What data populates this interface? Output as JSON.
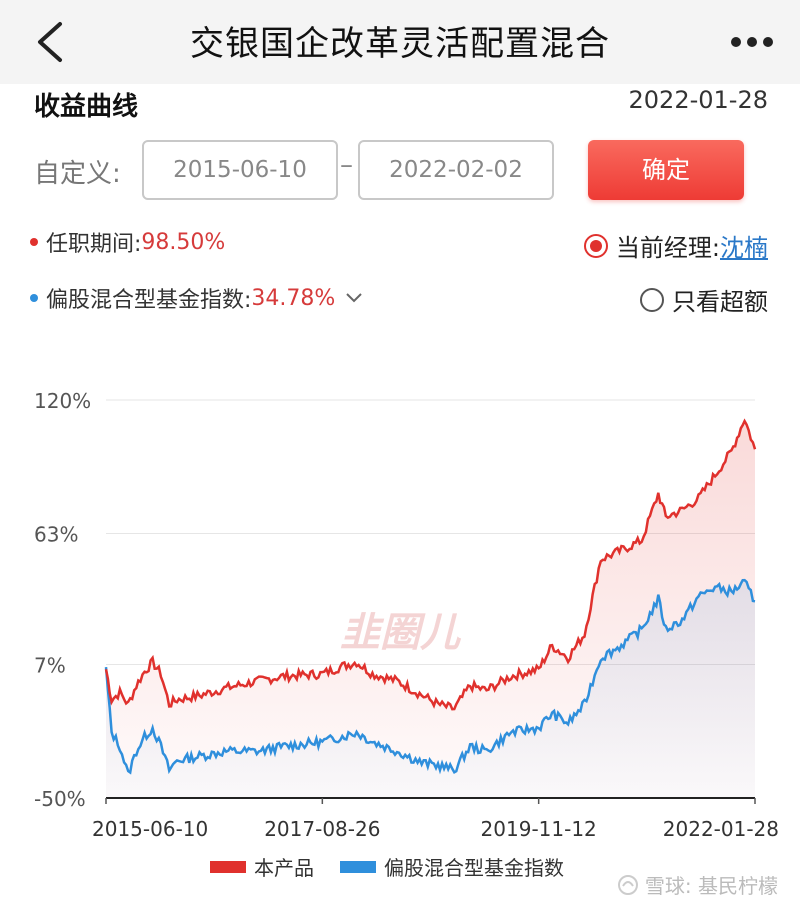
{
  "nav": {
    "title": "交银国企改革灵活配置混合",
    "back_icon": "chevron-left-icon",
    "more_icon": "more-horizontal-icon"
  },
  "section": {
    "title": "收益曲线",
    "date": "2022-01-28"
  },
  "range": {
    "label": "自定义:",
    "start": "2015-06-10",
    "separator": "–",
    "end": "2022-02-02",
    "confirm_label": "确定"
  },
  "legend": {
    "product": {
      "label": "任职期间:",
      "value": "98.50%",
      "color": "#e0312d"
    },
    "index": {
      "label": "偏股混合型基金指数:",
      "value": "34.78%",
      "color": "#2f8fdc"
    }
  },
  "options": {
    "current_manager_label": "当前经理:",
    "current_manager_name": "沈楠",
    "excess_label": "只看超额"
  },
  "watermark": "韭圈儿",
  "footer": "雪球: 基民柠檬",
  "colors": {
    "product": "#e0312d",
    "index": "#2f8fdc",
    "accent": "#ee3b35"
  },
  "chart_data": {
    "type": "line",
    "x_ticks": [
      "2015-06-10",
      "2017-08-26",
      "2019-11-12",
      "2022-01-28"
    ],
    "y_ticks": [
      "120%",
      "63%",
      "7%",
      "-50%"
    ],
    "y_tick_values": [
      120,
      63,
      7,
      -50
    ],
    "ylim": [
      -50,
      120
    ],
    "grid": true,
    "legend_placement": "bottom",
    "series": [
      {
        "name": "本产品",
        "color": "#e0312d",
        "points": [
          [
            "2015-06-10",
            5
          ],
          [
            "2015-07-01",
            -8
          ],
          [
            "2015-08-01",
            -5
          ],
          [
            "2015-09-01",
            -10
          ],
          [
            "2015-10-01",
            -2
          ],
          [
            "2015-11-01",
            4
          ],
          [
            "2015-12-01",
            8
          ],
          [
            "2016-01-01",
            3
          ],
          [
            "2016-02-01",
            -10
          ],
          [
            "2016-03-01",
            -8
          ],
          [
            "2016-06-01",
            -6
          ],
          [
            "2016-09-01",
            -3
          ],
          [
            "2017-01-01",
            0
          ],
          [
            "2017-04-01",
            2
          ],
          [
            "2017-08-26",
            3
          ],
          [
            "2017-11-01",
            6
          ],
          [
            "2018-01-01",
            8
          ],
          [
            "2018-03-01",
            3
          ],
          [
            "2018-06-01",
            0
          ],
          [
            "2018-09-01",
            -6
          ],
          [
            "2018-11-01",
            -10
          ],
          [
            "2019-01-01",
            -12
          ],
          [
            "2019-03-01",
            -2
          ],
          [
            "2019-05-01",
            -4
          ],
          [
            "2019-08-01",
            2
          ],
          [
            "2019-11-12",
            5
          ],
          [
            "2020-01-01",
            15
          ],
          [
            "2020-03-01",
            10
          ],
          [
            "2020-05-01",
            20
          ],
          [
            "2020-07-01",
            52
          ],
          [
            "2020-09-01",
            55
          ],
          [
            "2020-12-01",
            60
          ],
          [
            "2021-02-01",
            80
          ],
          [
            "2021-03-01",
            70
          ],
          [
            "2021-05-01",
            73
          ],
          [
            "2021-07-01",
            78
          ],
          [
            "2021-09-01",
            88
          ],
          [
            "2021-11-01",
            98
          ],
          [
            "2021-12-20",
            112
          ],
          [
            "2022-01-28",
            99
          ]
        ]
      },
      {
        "name": "偏股混合型基金指数",
        "color": "#2f8fdc",
        "points": [
          [
            "2015-06-10",
            5
          ],
          [
            "2015-07-01",
            -22
          ],
          [
            "2015-08-01",
            -28
          ],
          [
            "2015-09-01",
            -40
          ],
          [
            "2015-10-01",
            -30
          ],
          [
            "2015-11-01",
            -24
          ],
          [
            "2015-12-01",
            -20
          ],
          [
            "2016-01-01",
            -28
          ],
          [
            "2016-02-01",
            -38
          ],
          [
            "2016-03-01",
            -34
          ],
          [
            "2016-06-01",
            -32
          ],
          [
            "2016-09-01",
            -30
          ],
          [
            "2017-01-01",
            -30
          ],
          [
            "2017-04-01",
            -28
          ],
          [
            "2017-08-26",
            -26
          ],
          [
            "2017-11-01",
            -24
          ],
          [
            "2018-01-01",
            -22
          ],
          [
            "2018-03-01",
            -26
          ],
          [
            "2018-06-01",
            -30
          ],
          [
            "2018-09-01",
            -35
          ],
          [
            "2018-11-01",
            -36
          ],
          [
            "2019-01-01",
            -38
          ],
          [
            "2019-03-01",
            -28
          ],
          [
            "2019-05-01",
            -30
          ],
          [
            "2019-08-01",
            -22
          ],
          [
            "2019-11-12",
            -20
          ],
          [
            "2020-01-01",
            -14
          ],
          [
            "2020-03-01",
            -18
          ],
          [
            "2020-05-01",
            -10
          ],
          [
            "2020-07-01",
            10
          ],
          [
            "2020-09-01",
            14
          ],
          [
            "2020-12-01",
            22
          ],
          [
            "2021-02-01",
            35
          ],
          [
            "2021-03-01",
            22
          ],
          [
            "2021-05-01",
            26
          ],
          [
            "2021-07-01",
            36
          ],
          [
            "2021-09-01",
            40
          ],
          [
            "2021-11-01",
            38
          ],
          [
            "2021-12-20",
            42
          ],
          [
            "2022-01-28",
            34
          ]
        ]
      }
    ]
  }
}
